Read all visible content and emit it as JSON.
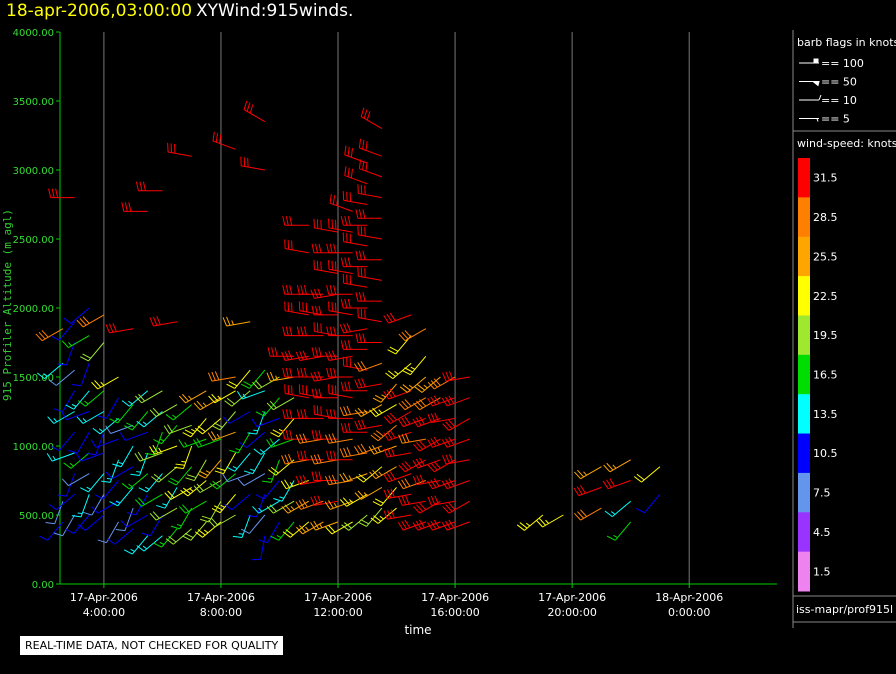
{
  "header": {
    "date": "18-apr-2006,03:00:00",
    "product": "XYWind:915winds."
  },
  "notice": "REAL-TIME DATA, NOT CHECKED FOR QUALITY",
  "source": "iss-mapr/prof915l",
  "legend": {
    "barb_title": "barb flags in knots",
    "barbs": [
      "== 100",
      "== 50",
      "== 10",
      "== 5"
    ],
    "speed_title": "wind-speed: knots",
    "colors": [
      {
        "label": "31.5",
        "color": "#ff0000"
      },
      {
        "label": "28.5",
        "color": "#ff8000"
      },
      {
        "label": "25.5",
        "color": "#ffa500"
      },
      {
        "label": "22.5",
        "color": "#ffff00"
      },
      {
        "label": "19.5",
        "color": "#a0e830"
      },
      {
        "label": "16.5",
        "color": "#00dd00"
      },
      {
        "label": "13.5",
        "color": "#00ffff"
      },
      {
        "label": "10.5",
        "color": "#0000ff"
      },
      {
        "label": "7.5",
        "color": "#6495ed"
      },
      {
        "label": "4.5",
        "color": "#9933ff"
      },
      {
        "label": "1.5",
        "color": "#ee82ee"
      }
    ]
  },
  "chart_data": {
    "type": "scatter",
    "title": "XYWind:915winds.",
    "xlabel": "time",
    "ylabel": "915 Profiler Altitude (m agl)",
    "ylim": [
      0,
      4000
    ],
    "xlim_hours": [
      2.5,
      27
    ],
    "yticks": [
      "0.00",
      "500.00",
      "1000.00",
      "1500.00",
      "2000.00",
      "2500.00",
      "3000.00",
      "3500.00",
      "4000.00"
    ],
    "xticks": [
      {
        "hour": 4,
        "line1": "17-Apr-2006",
        "line2": "4:00:00"
      },
      {
        "hour": 8,
        "line1": "17-Apr-2006",
        "line2": "8:00:00"
      },
      {
        "hour": 12,
        "line1": "17-Apr-2006",
        "line2": "12:00:00"
      },
      {
        "hour": 16,
        "line1": "17-Apr-2006",
        "line2": "16:00:00"
      },
      {
        "hour": 20,
        "line1": "17-Apr-2006",
        "line2": "20:00:00"
      },
      {
        "hour": 24,
        "line1": "18-Apr-2006",
        "line2": "0:00:00"
      }
    ],
    "grid": true,
    "barb_speed_units": "knots",
    "columns": [
      {
        "hour": 2.6,
        "altitudes": [
          450,
          600,
          1600,
          1850
        ],
        "speeds": [
          11,
          9,
          14,
          28
        ],
        "dirs": [
          220,
          200,
          230,
          240
        ]
      },
      {
        "hour": 3.0,
        "altitudes": [
          500,
          650,
          800,
          950,
          1100,
          1250,
          1400,
          1550,
          1750,
          1900,
          2800
        ],
        "speeds": [
          8,
          12,
          11,
          14,
          10,
          13,
          11,
          9,
          12,
          10,
          31
        ],
        "dirs": [
          210,
          230,
          200,
          250,
          220,
          240,
          210,
          230,
          200,
          220,
          270
        ]
      },
      {
        "hour": 3.5,
        "altitudes": [
          500,
          650,
          800,
          950,
          1100,
          1250,
          1400,
          1600,
          1800,
          2000
        ],
        "speeds": [
          10,
          13,
          9,
          16,
          12,
          11,
          14,
          12,
          17,
          11
        ],
        "dirs": [
          220,
          200,
          240,
          230,
          210,
          250,
          220,
          200,
          240,
          230
        ]
      },
      {
        "hour": 4.0,
        "altitudes": [
          500,
          650,
          800,
          950,
          1100,
          1250,
          1400,
          1750,
          1950
        ],
        "speeds": [
          11,
          9,
          14,
          12,
          10,
          13,
          16,
          20,
          29
        ],
        "dirs": [
          230,
          210,
          220,
          250,
          200,
          240,
          230,
          220,
          240
        ]
      },
      {
        "hour": 4.5,
        "altitudes": [
          450,
          600,
          750,
          900,
          1050,
          1200,
          1350,
          1500
        ],
        "speeds": [
          9,
          12,
          10,
          15,
          11,
          13,
          10,
          24
        ],
        "dirs": [
          210,
          240,
          220,
          200,
          250,
          230,
          210,
          240
        ]
      },
      {
        "hour": 5.0,
        "altitudes": [
          400,
          550,
          700,
          850,
          1000,
          1150,
          1300,
          1850
        ],
        "speeds": [
          12,
          8,
          14,
          11,
          13,
          9,
          16,
          31
        ],
        "dirs": [
          230,
          200,
          220,
          240,
          210,
          250,
          220,
          260
        ]
      },
      {
        "hour": 5.5,
        "altitudes": [
          350,
          500,
          650,
          800,
          950,
          1100,
          1250,
          1400,
          2700
        ],
        "speeds": [
          13,
          10,
          12,
          17,
          14,
          11,
          18,
          15,
          31
        ],
        "dirs": [
          220,
          240,
          210,
          230,
          200,
          250,
          220,
          230,
          270
        ]
      },
      {
        "hour": 6.0,
        "altitudes": [
          350,
          500,
          650,
          800,
          950,
          1100,
          1250,
          1400,
          2850
        ],
        "speeds": [
          15,
          12,
          18,
          14,
          20,
          16,
          13,
          19,
          31
        ],
        "dirs": [
          230,
          210,
          240,
          220,
          250,
          200,
          230,
          240,
          270
        ]
      },
      {
        "hour": 6.5,
        "altitudes": [
          400,
          550,
          700,
          850,
          1000,
          1150,
          1300,
          1900
        ],
        "speeds": [
          17,
          21,
          14,
          19,
          23,
          16,
          20,
          31
        ],
        "dirs": [
          220,
          240,
          210,
          230,
          250,
          220,
          240,
          260
        ]
      },
      {
        "hour": 7.0,
        "altitudes": [
          400,
          550,
          700,
          850,
          1000,
          1150,
          1300,
          3100
        ],
        "speeds": [
          19,
          16,
          22,
          18,
          24,
          20,
          17,
          31
        ],
        "dirs": [
          230,
          210,
          240,
          220,
          200,
          250,
          230,
          280
        ]
      },
      {
        "hour": 7.5,
        "altitudes": [
          450,
          600,
          750,
          900,
          1050,
          1200,
          1400
        ],
        "speeds": [
          21,
          18,
          24,
          20,
          17,
          23,
          26
        ],
        "dirs": [
          220,
          240,
          230,
          210,
          250,
          220,
          240
        ]
      },
      {
        "hour": 8.0,
        "altitudes": [
          450,
          600,
          750,
          900,
          1050,
          1200,
          1350
        ],
        "speeds": [
          23,
          19,
          21,
          25,
          18,
          22,
          27
        ],
        "dirs": [
          230,
          210,
          240,
          220,
          250,
          230,
          240
        ]
      },
      {
        "hour": 8.5,
        "altitudes": [
          500,
          650,
          800,
          950,
          1100,
          1250,
          1400,
          1500,
          3150
        ],
        "speeds": [
          20,
          24,
          18,
          22,
          26,
          19,
          23,
          28,
          31
        ],
        "dirs": [
          240,
          220,
          230,
          210,
          250,
          220,
          240,
          260,
          290
        ]
      },
      {
        "hour": 9.0,
        "altitudes": [
          500,
          650,
          800,
          950,
          1100,
          1250,
          1400,
          1550,
          1900
        ],
        "speeds": [
          15,
          11,
          9,
          13,
          16,
          12,
          19,
          22,
          27
        ],
        "dirs": [
          200,
          230,
          250,
          220,
          210,
          240,
          230,
          220,
          260
        ]
      },
      {
        "hour": 9.5,
        "altitudes": [
          350,
          500,
          650,
          800,
          950,
          1100,
          1250,
          1400,
          1550,
          3000,
          3350
        ],
        "speeds": [
          11,
          9,
          12,
          8,
          14,
          10,
          13,
          15,
          18,
          31,
          31
        ],
        "dirs": [
          190,
          220,
          200,
          240,
          210,
          230,
          200,
          250,
          220,
          280,
          300
        ]
      },
      {
        "hour": 10.0,
        "altitudes": [
          450,
          600,
          750,
          900,
          1050,
          1200,
          1350,
          1500
        ],
        "speeds": [
          12,
          14,
          10,
          16,
          13,
          11,
          17,
          20
        ],
        "dirs": [
          210,
          240,
          220,
          200,
          230,
          250,
          220,
          240
        ]
      },
      {
        "hour": 10.5,
        "altitudes": [
          450,
          600,
          750,
          900,
          1050,
          1200,
          1350,
          1500,
          1650
        ],
        "speeds": [
          16,
          19,
          14,
          22,
          18,
          24,
          20,
          27,
          31
        ],
        "dirs": [
          220,
          240,
          210,
          230,
          250,
          220,
          240,
          260,
          270
        ]
      },
      {
        "hour": 11.0,
        "altitudes": [
          450,
          600,
          750,
          900,
          1050,
          1200,
          1350,
          1500,
          1650,
          1800,
          1950,
          2100,
          2400,
          2600
        ],
        "speeds": [
          22,
          26,
          24,
          29,
          31,
          31,
          31,
          31,
          31,
          31,
          31,
          31,
          31,
          31
        ],
        "dirs": [
          230,
          240,
          250,
          260,
          270,
          270,
          280,
          270,
          260,
          270,
          280,
          270,
          280,
          270
        ]
      },
      {
        "hour": 11.5,
        "altitudes": [
          450,
          600,
          750,
          900,
          1050,
          1200,
          1350,
          1500,
          1650,
          1800,
          1950,
          2100
        ],
        "speeds": [
          25,
          28,
          31,
          31,
          30,
          31,
          31,
          31,
          31,
          31,
          31,
          31
        ],
        "dirs": [
          240,
          250,
          260,
          270,
          260,
          270,
          280,
          270,
          260,
          270,
          280,
          270
        ]
      },
      {
        "hour": 12.0,
        "altitudes": [
          450,
          600,
          750,
          900,
          1050,
          1200,
          1350,
          1500,
          1650,
          1800,
          1950,
          2100,
          2250,
          2400,
          2550
        ],
        "speeds": [
          27,
          31,
          31,
          29,
          31,
          31,
          31,
          31,
          31,
          31,
          31,
          31,
          31,
          31,
          31
        ],
        "dirs": [
          250,
          260,
          270,
          260,
          270,
          280,
          270,
          260,
          270,
          280,
          270,
          260,
          280,
          270,
          280
        ]
      },
      {
        "hour": 12.5,
        "altitudes": [
          450,
          600,
          750,
          900,
          1050,
          1200,
          1350,
          1500,
          1650,
          1800,
          1950,
          2100,
          2250,
          2400,
          2550,
          2700
        ],
        "speeds": [
          22,
          25,
          28,
          31,
          30,
          31,
          31,
          31,
          31,
          31,
          31,
          31,
          31,
          31,
          31,
          31
        ],
        "dirs": [
          240,
          250,
          260,
          270,
          260,
          270,
          280,
          270,
          260,
          270,
          280,
          270,
          280,
          270,
          280,
          290
        ]
      },
      {
        "hour": 13.0,
        "altitudes": [
          500,
          650,
          800,
          950,
          1100,
          1250,
          1400,
          1550,
          1700,
          1850,
          2000,
          2150,
          2300,
          2450,
          2600,
          2750,
          2900,
          3050
        ],
        "speeds": [
          20,
          24,
          27,
          30,
          31,
          28,
          31,
          31,
          31,
          31,
          31,
          31,
          31,
          31,
          31,
          31,
          31,
          31
        ],
        "dirs": [
          230,
          240,
          250,
          260,
          270,
          260,
          270,
          280,
          270,
          260,
          270,
          280,
          270,
          280,
          270,
          280,
          290,
          290
        ]
      },
      {
        "hour": 13.5,
        "altitudes": [
          550,
          700,
          850,
          1000,
          1150,
          1300,
          1450,
          1600,
          1750,
          1900,
          2050,
          2200,
          2350,
          2500,
          2650,
          2800,
          2950,
          3100,
          3300
        ],
        "speeds": [
          21,
          25,
          22,
          28,
          31,
          26,
          31,
          29,
          31,
          31,
          31,
          31,
          31,
          31,
          31,
          31,
          31,
          31,
          31
        ],
        "dirs": [
          220,
          240,
          230,
          250,
          260,
          240,
          260,
          250,
          270,
          280,
          270,
          280,
          270,
          280,
          270,
          280,
          290,
          290,
          300
        ]
      },
      {
        "hour": 14.0,
        "altitudes": [
          550,
          700,
          850,
          1000,
          1150,
          1300,
          1450
        ],
        "speeds": [
          24,
          22,
          27,
          25,
          29,
          23,
          26
        ],
        "dirs": [
          230,
          220,
          240,
          250,
          230,
          240,
          220
        ]
      },
      {
        "hour": 14.5,
        "altitudes": [
          500,
          650,
          800,
          950,
          1100,
          1250,
          1400,
          1600,
          1800,
          1950
        ],
        "speeds": [
          31,
          31,
          31,
          31,
          31,
          31,
          31,
          24,
          22,
          31
        ],
        "dirs": [
          260,
          260,
          250,
          260,
          250,
          240,
          250,
          230,
          220,
          250
        ]
      },
      {
        "hour": 15.0,
        "altitudes": [
          450,
          600,
          750,
          900,
          1050,
          1200,
          1350,
          1500,
          1650,
          1850
        ],
        "speeds": [
          31,
          31,
          30,
          31,
          29,
          31,
          28,
          26,
          23,
          28
        ],
        "dirs": [
          250,
          260,
          250,
          240,
          260,
          250,
          240,
          230,
          220,
          240
        ]
      },
      {
        "hour": 15.5,
        "altitudes": [
          450,
          600,
          750,
          900,
          1050,
          1200,
          1350,
          1500
        ],
        "speeds": [
          31,
          31,
          31,
          31,
          31,
          31,
          29,
          27
        ],
        "dirs": [
          250,
          240,
          260,
          250,
          240,
          250,
          240,
          230
        ]
      },
      {
        "hour": 16.0,
        "altitudes": [
          450,
          600,
          750,
          900,
          1050,
          1200,
          1350,
          1500
        ],
        "speeds": [
          31,
          31,
          31,
          31,
          31,
          31,
          31,
          30
        ],
        "dirs": [
          250,
          260,
          250,
          240,
          250,
          260,
          250,
          240
        ]
      },
      {
        "hour": 16.5,
        "altitudes": [
          450,
          600,
          750,
          900,
          1050,
          1200,
          1350,
          1500
        ],
        "speeds": [
          31,
          31,
          31,
          31,
          31,
          31,
          31,
          31
        ],
        "dirs": [
          250,
          240,
          250,
          260,
          250,
          240,
          250,
          260
        ]
      },
      {
        "hour": 19.0,
        "altitudes": [
          500
        ],
        "speeds": [
          23
        ],
        "dirs": [
          230
        ]
      },
      {
        "hour": 19.7,
        "altitudes": [
          500
        ],
        "speeds": [
          24
        ],
        "dirs": [
          240
        ]
      },
      {
        "hour": 21.0,
        "altitudes": [
          550,
          700,
          850
        ],
        "speeds": [
          30,
          31,
          27
        ],
        "dirs": [
          240,
          250,
          240
        ]
      },
      {
        "hour": 22.0,
        "altitudes": [
          450,
          600,
          750,
          900
        ],
        "speeds": [
          17,
          14,
          31,
          26
        ],
        "dirs": [
          220,
          230,
          250,
          240
        ]
      },
      {
        "hour": 23.0,
        "altitudes": [
          650,
          850
        ],
        "speeds": [
          12,
          22
        ],
        "dirs": [
          220,
          230
        ]
      }
    ]
  }
}
